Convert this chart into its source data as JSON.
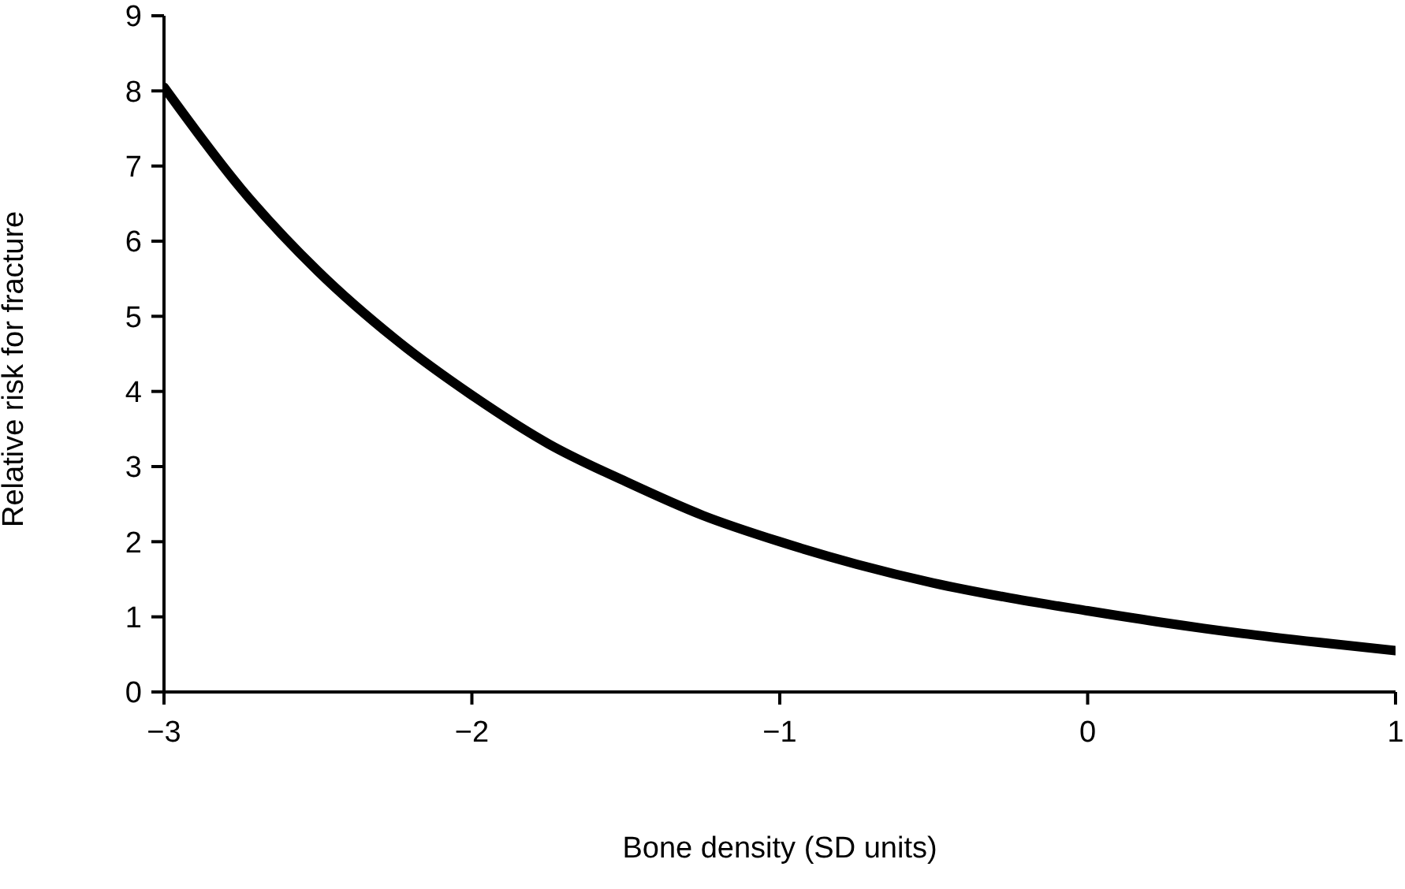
{
  "chart_data": {
    "type": "line",
    "xlabel": "Bone density (SD units)",
    "ylabel": "Relative risk for fracture",
    "x": [
      -3,
      -2.75,
      -2.5,
      -2.25,
      -2,
      -1.75,
      -1.5,
      -1.25,
      -1,
      -0.75,
      -0.5,
      -0.25,
      0,
      0.25,
      0.5,
      0.75,
      1
    ],
    "series": [
      {
        "color": "#000000",
        "values": [
          8.05,
          6.7,
          5.6,
          4.7,
          3.95,
          3.3,
          2.8,
          2.35,
          2.0,
          1.7,
          1.45,
          1.25,
          1.08,
          0.92,
          0.78,
          0.66,
          0.55
        ]
      }
    ],
    "xlim": [
      -3,
      1
    ],
    "xticks": [
      {
        "value": -3,
        "label": "−3"
      },
      {
        "value": -2,
        "label": "−2"
      },
      {
        "value": -1,
        "label": "−1"
      },
      0,
      1
    ],
    "ylim": [
      0,
      9
    ],
    "yticks": [
      0,
      1,
      2,
      3,
      4,
      5,
      6,
      7,
      8,
      9
    ],
    "grid": false,
    "legend": false,
    "marker": "none",
    "line_style": "solid"
  }
}
